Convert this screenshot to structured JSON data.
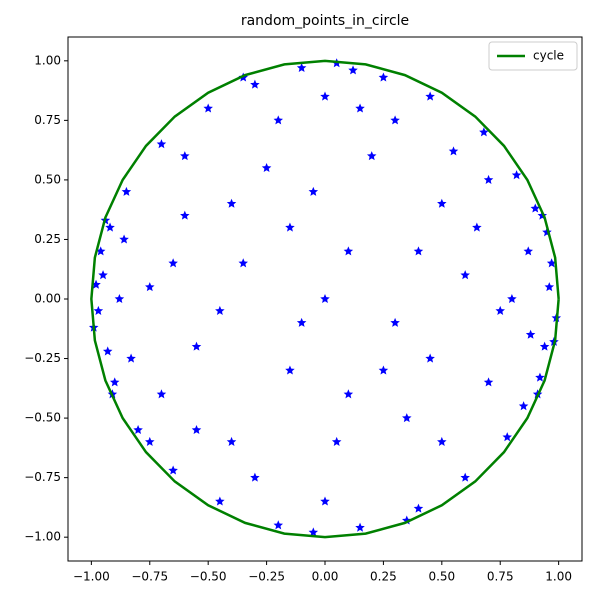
{
  "chart_data": {
    "type": "scatter",
    "title": "random_points_in_circle",
    "xlim": [
      -1.1,
      1.1
    ],
    "ylim": [
      -1.1,
      1.1
    ],
    "xticks": [
      {
        "value": -1,
        "label": "−1.00"
      },
      {
        "value": -0.75,
        "label": "−0.75"
      },
      {
        "value": -0.5,
        "label": "−0.50"
      },
      {
        "value": -0.25,
        "label": "−0.25"
      },
      {
        "value": 0,
        "label": "0.00"
      },
      {
        "value": 0.25,
        "label": "0.25"
      },
      {
        "value": 0.5,
        "label": "0.50"
      },
      {
        "value": 0.75,
        "label": "0.75"
      },
      {
        "value": 1,
        "label": "1.00"
      }
    ],
    "yticks": [
      {
        "value": -1,
        "label": "−1.00"
      },
      {
        "value": -0.75,
        "label": "−0.75"
      },
      {
        "value": -0.5,
        "label": "−0.50"
      },
      {
        "value": -0.25,
        "label": "−0.25"
      },
      {
        "value": 0,
        "label": "0.00"
      },
      {
        "value": 0.25,
        "label": "0.25"
      },
      {
        "value": 0.5,
        "label": "0.50"
      },
      {
        "value": 0.75,
        "label": "0.75"
      },
      {
        "value": 1,
        "label": "1.00"
      }
    ],
    "legend": "upper right",
    "series": [
      {
        "color": "#0000ff",
        "mode": "markers",
        "x": [
          -0.95,
          -0.97,
          -0.92,
          -0.9,
          -0.96,
          0.96,
          0.94,
          0.97,
          0.9,
          0.92,
          -0.85,
          -0.8,
          0.82,
          0.78,
          -0.7,
          0.68,
          -0.65,
          0.6,
          -0.3,
          0.25,
          -0.1,
          0.05,
          -0.2,
          0.15,
          0.4,
          -0.45,
          -0.5,
          0.45,
          0,
          0.1,
          -0.15,
          0.3,
          -0.35,
          0.5,
          -0.55,
          0.6,
          -0.6,
          0.2,
          -0.25,
          0.35,
          -0.4,
          0.7,
          -0.75,
          0.75,
          -0.05,
          0.05,
          -0.7,
          0.65,
          -0.2,
          0.15,
          -0.88,
          -0.99,
          0.99,
          0.87,
          -0.83,
          0.85,
          -0.93,
          0.95,
          -0.86,
          0.88,
          -0.6,
          0.55,
          -0.55,
          0.5,
          0,
          0,
          -0.4,
          0.4,
          -0.1,
          0.25,
          -0.3,
          0.3,
          -0.45,
          0.45,
          -0.15,
          0.1,
          -0.65,
          0.7,
          -0.75,
          0.8,
          -0.98,
          0.98,
          -0.94,
          0.93,
          -0.91,
          0.91,
          -0.35,
          0.35,
          -0.05,
          0.12
        ],
        "y": [
          0.1,
          -0.05,
          0.3,
          -0.35,
          0.2,
          0.05,
          -0.2,
          0.15,
          0.38,
          -0.33,
          0.45,
          -0.55,
          0.52,
          -0.58,
          0.65,
          0.7,
          -0.72,
          -0.75,
          0.9,
          0.93,
          0.97,
          0.99,
          -0.95,
          -0.96,
          -0.88,
          -0.85,
          0.8,
          0.85,
          0,
          0.2,
          -0.3,
          -0.1,
          0.15,
          0.4,
          -0.2,
          0.1,
          0.35,
          0.6,
          0.55,
          -0.5,
          -0.6,
          -0.35,
          0.05,
          -0.05,
          0.45,
          -0.6,
          -0.4,
          0.3,
          0.75,
          0.8,
          0,
          -0.12,
          -0.08,
          0.2,
          -0.25,
          -0.45,
          -0.22,
          0.28,
          0.25,
          -0.15,
          0.6,
          0.62,
          -0.55,
          -0.6,
          -0.85,
          0.85,
          0.4,
          0.2,
          -0.1,
          -0.3,
          -0.75,
          0.75,
          -0.05,
          -0.25,
          0.3,
          -0.4,
          0.15,
          0.5,
          -0.6,
          0,
          0.06,
          -0.18,
          0.33,
          0.35,
          -0.4,
          -0.4,
          0.93,
          -0.93,
          -0.98,
          0.96
        ]
      },
      {
        "name": "cycle",
        "color": "#008000",
        "mode": "line",
        "x": [
          1,
          0.985,
          0.94,
          0.866,
          0.766,
          0.643,
          0.5,
          0.342,
          0.174,
          0,
          -0.174,
          -0.342,
          -0.5,
          -0.643,
          -0.766,
          -0.866,
          -0.94,
          -0.985,
          -1,
          -0.985,
          -0.94,
          -0.866,
          -0.766,
          -0.643,
          -0.5,
          -0.342,
          -0.174,
          0,
          0.174,
          0.342,
          0.5,
          0.643,
          0.766,
          0.866,
          0.94,
          0.985,
          1
        ],
        "y": [
          0,
          0.174,
          0.342,
          0.5,
          0.643,
          0.766,
          0.866,
          0.94,
          0.985,
          1,
          0.985,
          0.94,
          0.866,
          0.766,
          0.643,
          0.5,
          0.342,
          0.174,
          0,
          -0.174,
          -0.342,
          -0.5,
          -0.643,
          -0.766,
          -0.866,
          -0.94,
          -0.985,
          -1,
          -0.985,
          -0.94,
          -0.866,
          -0.766,
          -0.643,
          -0.5,
          -0.342,
          -0.174,
          0
        ]
      }
    ]
  }
}
